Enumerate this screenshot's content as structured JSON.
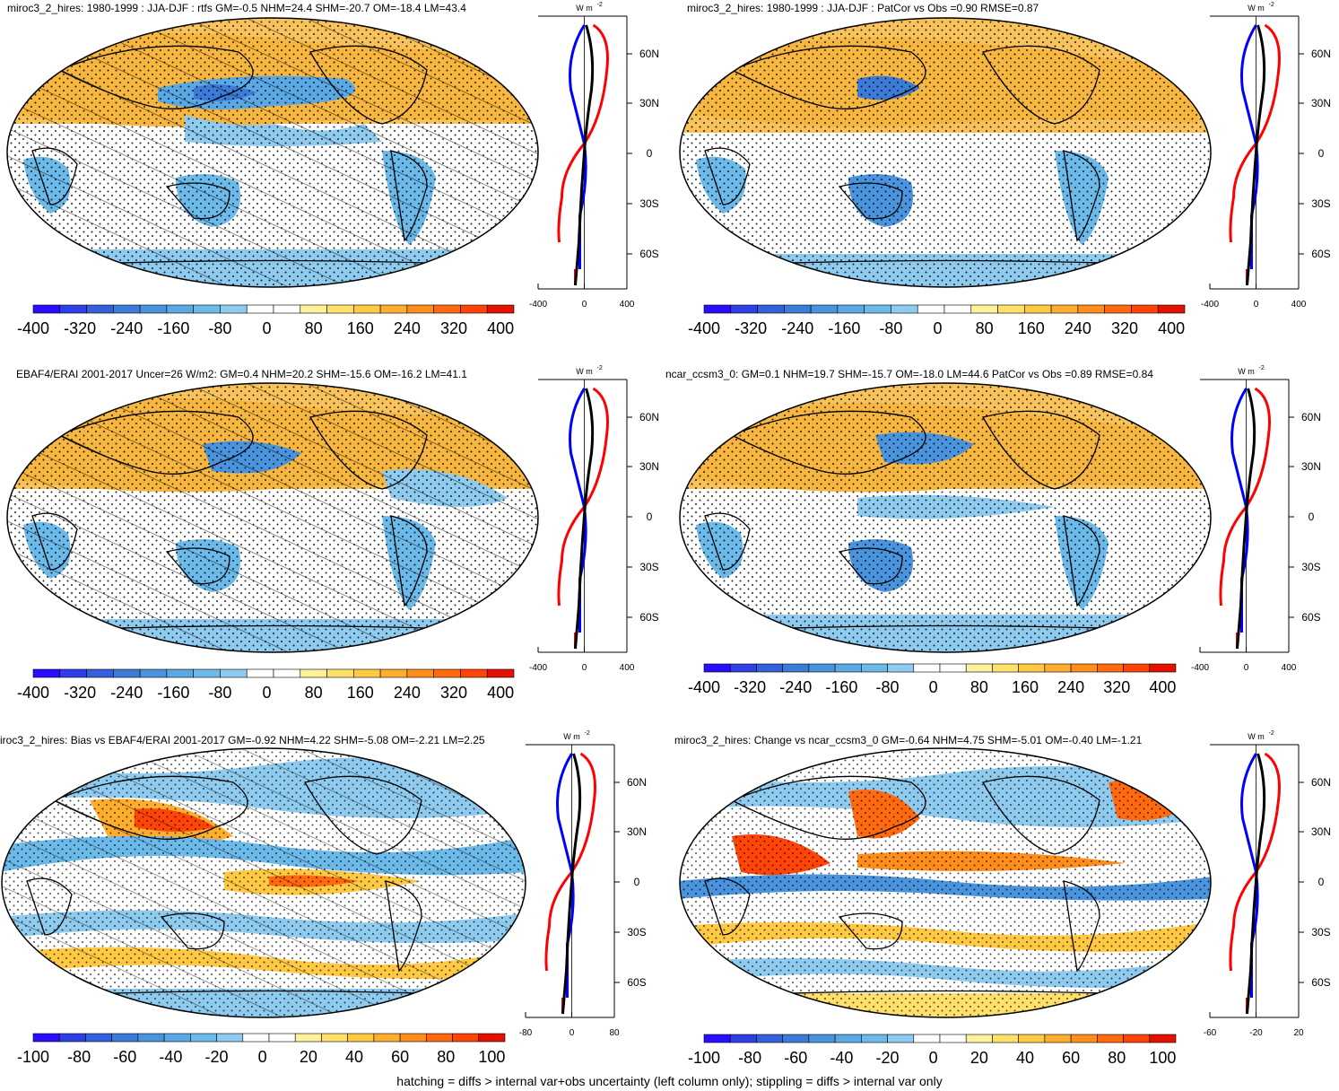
{
  "footer": "hatching = diffs > internal var+obs uncertainty (left column only); stippling = diffs > internal var only",
  "units_label": "W m",
  "units_sup": "-2",
  "lat_ticks": [
    "60N",
    "30N",
    "0",
    "30S",
    "60S"
  ],
  "colors": {
    "coast": "#000000",
    "profile_sh": "#ff0000",
    "profile_nh": "#0000ff",
    "profile_mean": "#000000"
  },
  "palette": [
    "#2a0cff",
    "#2f3fe8",
    "#3560dc",
    "#3d7bd8",
    "#4a94dd",
    "#5aa8e4",
    "#6cbae9",
    "#8ecbee",
    "#ffffff",
    "#ffffff",
    "#fff19a",
    "#ffe06a",
    "#ffc944",
    "#ffad2e",
    "#ff8d1c",
    "#ff6a10",
    "#ff4408",
    "#e41000"
  ],
  "panels": [
    {
      "id": "p1",
      "title": "miroc3_2_hires: 1980-1999 : JJA-DJF : rtfs GM=-0.5 NHM=24.4 SHM=-20.7 OM=-18.4 LM=43.4",
      "cbar_labels": [
        "-400",
        "-320",
        "-240",
        "-160",
        "-80",
        "0",
        "80",
        "160",
        "240",
        "320",
        "400"
      ],
      "prof_ticks": [
        "-400",
        "0",
        "400"
      ]
    },
    {
      "id": "p2",
      "title": "miroc3_2_hires: 1980-1999 : JJA-DJF : PatCor vs Obs =0.90 RMSE=0.87",
      "cbar_labels": [
        "-400",
        "-320",
        "-240",
        "-160",
        "-80",
        "0",
        "80",
        "160",
        "240",
        "320",
        "400"
      ],
      "prof_ticks": [
        "-400",
        "0",
        "400"
      ]
    },
    {
      "id": "p3",
      "title": "EBAF4/ERAI 2001-2017 Uncer=26 W/m2: GM=0.4 NHM=20.2 SHM=-15.6 OM=-16.2 LM=41.1",
      "cbar_labels": [
        "-400",
        "-320",
        "-240",
        "-160",
        "-80",
        "0",
        "80",
        "160",
        "240",
        "320",
        "400"
      ],
      "prof_ticks": [
        "-400",
        "0",
        "400"
      ]
    },
    {
      "id": "p4",
      "title": "ncar_ccsm3_0: GM=0.1 NHM=19.7 SHM=-15.7 OM=-18.0 LM=44.6 PatCor vs Obs =0.89 RMSE=0.84",
      "cbar_labels": [
        "-400",
        "-320",
        "-240",
        "-160",
        "-80",
        "0",
        "80",
        "160",
        "240",
        "320",
        "400"
      ],
      "prof_ticks": [
        "-400",
        "0",
        "400"
      ]
    },
    {
      "id": "p5",
      "title": "iroc3_2_hires: Bias vs EBAF4/ERAI 2001-2017 GM=-0.92 NHM=4.22 SHM=-5.08 OM=-2.21 LM=2.25",
      "cbar_labels": [
        "-100",
        "-80",
        "-60",
        "-40",
        "-20",
        "0",
        "20",
        "40",
        "60",
        "80",
        "100"
      ],
      "prof_ticks": [
        "-80",
        "0",
        "80"
      ]
    },
    {
      "id": "p6",
      "title": "miroc3_2_hires: Change vs ncar_ccsm3_0 GM=-0.64 NHM=4.75 SHM=-5.01 OM=-0.40 LM=-1.21",
      "cbar_labels": [
        "-100",
        "-80",
        "-60",
        "-40",
        "-20",
        "0",
        "20",
        "40",
        "60",
        "80",
        "100"
      ],
      "prof_ticks": [
        "-60",
        "-20",
        "20"
      ]
    }
  ]
}
